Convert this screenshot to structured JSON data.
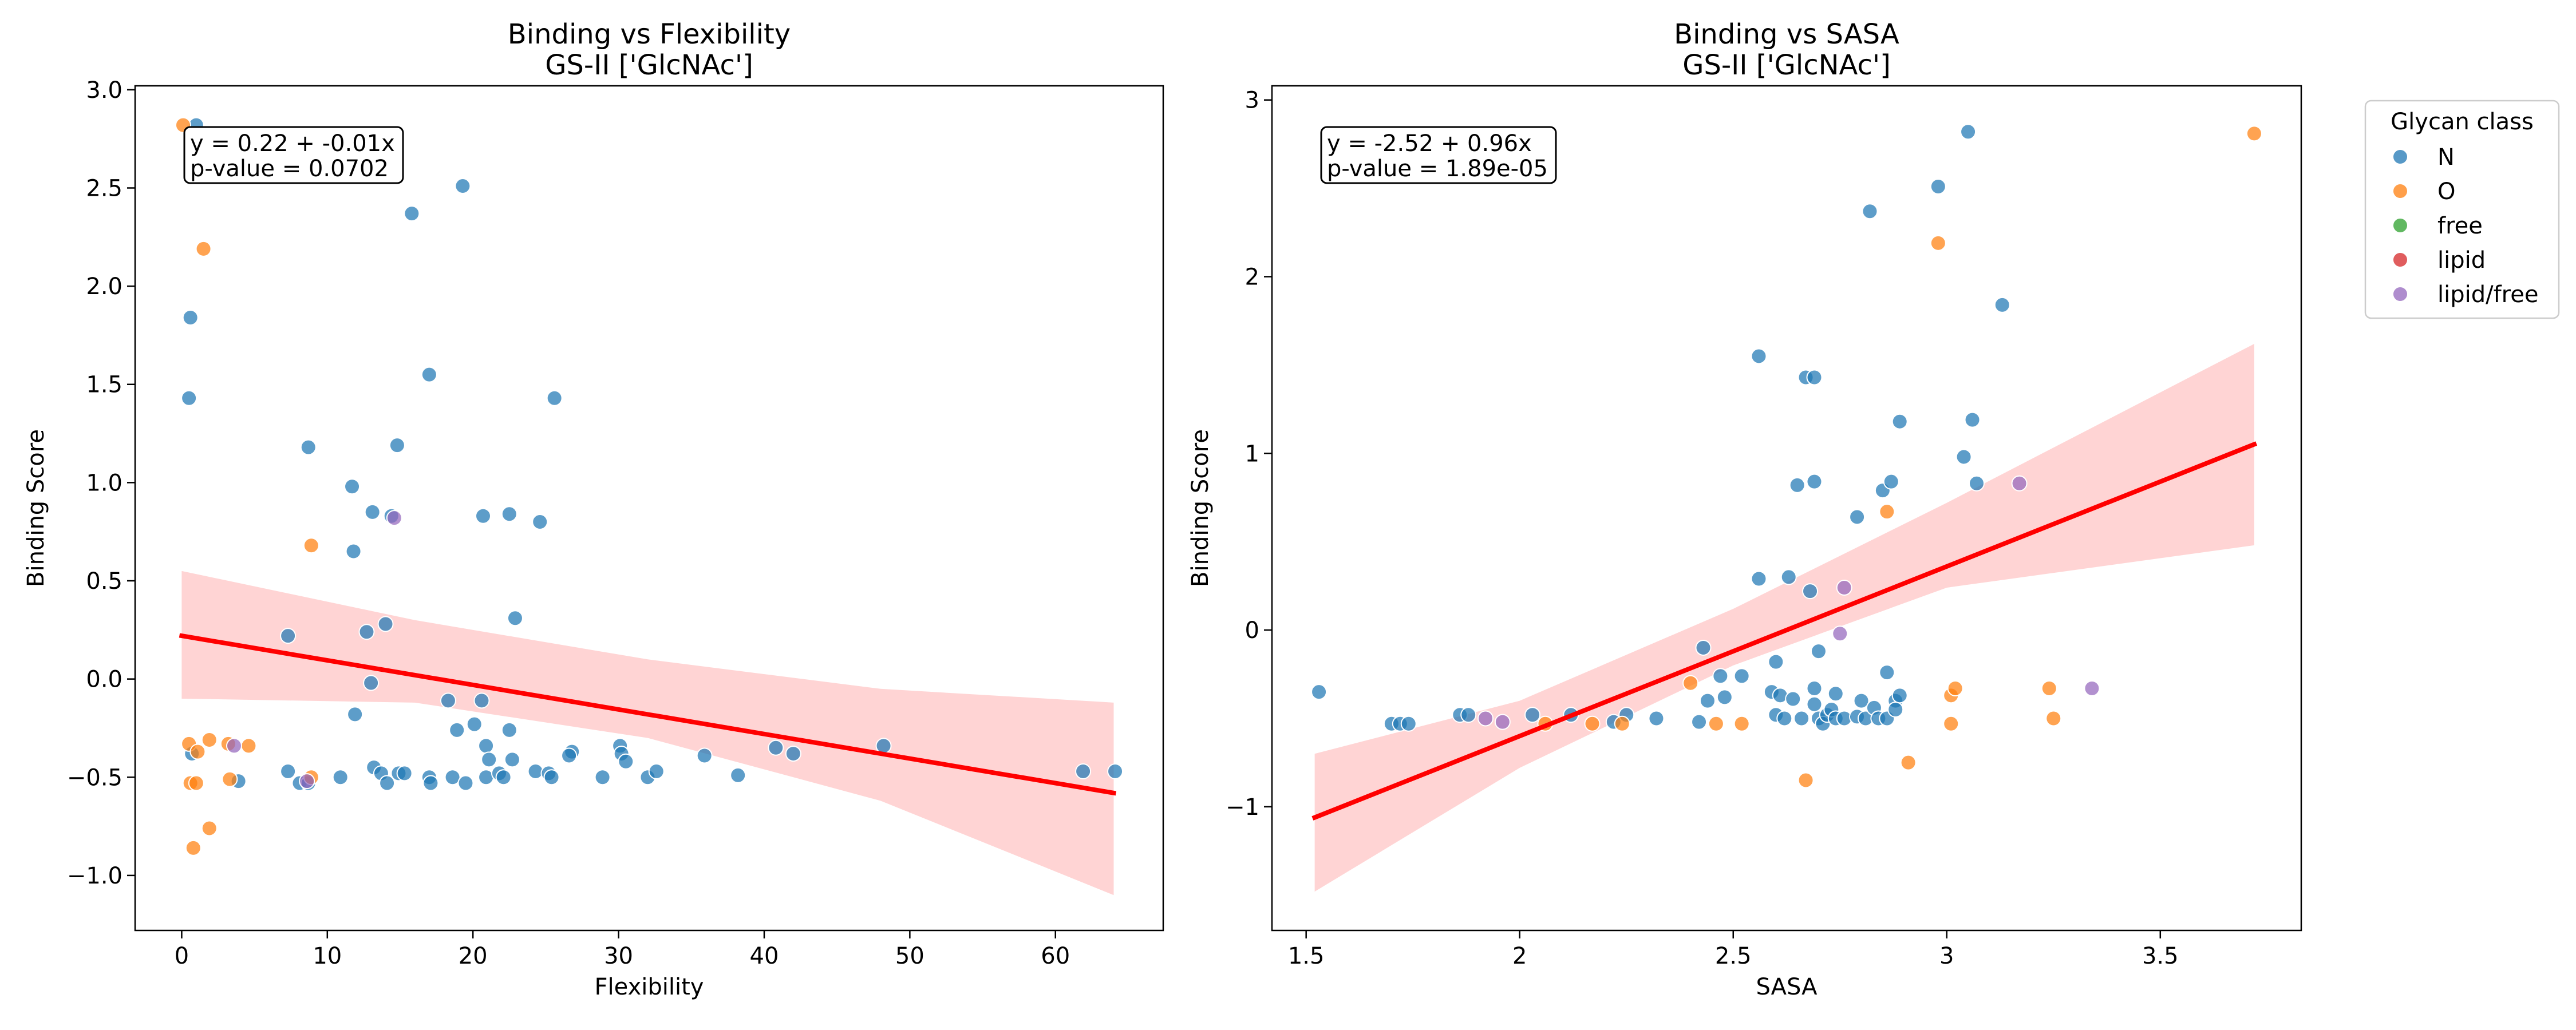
{
  "chart_data": [
    {
      "type": "scatter",
      "title": "Binding vs Flexibility",
      "subtitle": "GS-II ['GlcNAc']",
      "xlabel": "Flexibility",
      "ylabel": "Binding Score",
      "xlim": [
        -3.2,
        67.4
      ],
      "ylim": [
        -1.28,
        3.02
      ],
      "xticks": [
        0,
        10,
        20,
        30,
        40,
        50,
        60
      ],
      "yticks": [
        -1.0,
        -0.5,
        0.0,
        0.5,
        1.0,
        1.5,
        2.0,
        2.5,
        3.0
      ],
      "ytick_labels": [
        "−1.0",
        "−0.5",
        "0.0",
        "0.5",
        "1.0",
        "1.5",
        "2.0",
        "2.5",
        "3.0"
      ],
      "grid": false,
      "stats_text": [
        "y = 0.22 + -0.01x",
        "p-value = 0.0702"
      ],
      "fit": {
        "intercept": 0.22,
        "slope": -0.0125,
        "x_range": [
          0,
          64
        ]
      },
      "ci_band": {
        "x": [
          0,
          16,
          32,
          48,
          64
        ],
        "lower": [
          -0.1,
          -0.12,
          -0.3,
          -0.62,
          -1.1
        ],
        "upper": [
          0.55,
          0.3,
          0.1,
          -0.05,
          -0.12
        ]
      },
      "series": [
        {
          "name": "N",
          "color": "#1f77b4",
          "points": [
            [
              1.0,
              2.82
            ],
            [
              0.6,
              1.84
            ],
            [
              0.5,
              1.43
            ],
            [
              19.3,
              2.51
            ],
            [
              15.8,
              2.37
            ],
            [
              17.0,
              1.55
            ],
            [
              25.6,
              1.43
            ],
            [
              8.7,
              1.18
            ],
            [
              14.8,
              1.19
            ],
            [
              11.7,
              0.98
            ],
            [
              13.1,
              0.85
            ],
            [
              14.4,
              0.83
            ],
            [
              20.7,
              0.83
            ],
            [
              22.5,
              0.84
            ],
            [
              24.6,
              0.8
            ],
            [
              11.8,
              0.65
            ],
            [
              22.9,
              0.31
            ],
            [
              14.0,
              0.28
            ],
            [
              12.7,
              0.24
            ],
            [
              7.3,
              0.22
            ],
            [
              13.0,
              -0.02
            ],
            [
              18.3,
              -0.11
            ],
            [
              20.6,
              -0.11
            ],
            [
              11.9,
              -0.18
            ],
            [
              20.1,
              -0.23
            ],
            [
              18.9,
              -0.26
            ],
            [
              22.5,
              -0.26
            ],
            [
              20.9,
              -0.34
            ],
            [
              22.7,
              -0.41
            ],
            [
              21.1,
              -0.41
            ],
            [
              26.8,
              -0.37
            ],
            [
              26.6,
              -0.39
            ],
            [
              30.1,
              -0.34
            ],
            [
              30.2,
              -0.38
            ],
            [
              30.5,
              -0.42
            ],
            [
              35.9,
              -0.39
            ],
            [
              40.8,
              -0.35
            ],
            [
              42.0,
              -0.38
            ],
            [
              48.2,
              -0.34
            ],
            [
              0.7,
              -0.38
            ],
            [
              3.9,
              -0.52
            ],
            [
              7.3,
              -0.47
            ],
            [
              8.1,
              -0.53
            ],
            [
              8.7,
              -0.53
            ],
            [
              10.9,
              -0.5
            ],
            [
              13.2,
              -0.45
            ],
            [
              13.7,
              -0.48
            ],
            [
              14.1,
              -0.53
            ],
            [
              14.9,
              -0.48
            ],
            [
              15.3,
              -0.48
            ],
            [
              17.0,
              -0.5
            ],
            [
              17.1,
              -0.53
            ],
            [
              18.6,
              -0.5
            ],
            [
              19.5,
              -0.53
            ],
            [
              20.9,
              -0.5
            ],
            [
              21.8,
              -0.48
            ],
            [
              22.1,
              -0.5
            ],
            [
              24.3,
              -0.47
            ],
            [
              25.2,
              -0.48
            ],
            [
              25.4,
              -0.5
            ],
            [
              28.9,
              -0.5
            ],
            [
              32.0,
              -0.5
            ],
            [
              32.6,
              -0.47
            ],
            [
              38.2,
              -0.49
            ],
            [
              61.9,
              -0.47
            ],
            [
              64.1,
              -0.47
            ]
          ]
        },
        {
          "name": "O",
          "color": "#ff7f0e",
          "points": [
            [
              0.1,
              2.82
            ],
            [
              1.5,
              2.19
            ],
            [
              8.9,
              0.68
            ],
            [
              0.5,
              -0.33
            ],
            [
              1.1,
              -0.37
            ],
            [
              1.9,
              -0.31
            ],
            [
              3.2,
              -0.33
            ],
            [
              4.6,
              -0.34
            ],
            [
              0.6,
              -0.53
            ],
            [
              1.0,
              -0.53
            ],
            [
              3.3,
              -0.51
            ],
            [
              8.9,
              -0.5
            ],
            [
              1.9,
              -0.76
            ],
            [
              0.8,
              -0.86
            ]
          ]
        },
        {
          "name": "free",
          "color": "#2ca02c",
          "points": []
        },
        {
          "name": "lipid",
          "color": "#d62728",
          "points": []
        },
        {
          "name": "lipid/free",
          "color": "#9467bd",
          "points": [
            [
              3.6,
              -0.34
            ],
            [
              8.6,
              -0.52
            ],
            [
              14.6,
              0.82
            ]
          ]
        }
      ]
    },
    {
      "type": "scatter",
      "title": "Binding vs SASA",
      "subtitle": "GS-II ['GlcNAc']",
      "xlabel": "SASA",
      "ylabel": "Binding Score",
      "xlim": [
        1.42,
        3.83
      ],
      "ylim": [
        -1.7,
        3.08
      ],
      "xticks": [
        1.5,
        2.0,
        2.5,
        3.0,
        3.5
      ],
      "yticks": [
        -1,
        0,
        1,
        2,
        3
      ],
      "ytick_labels": [
        "−1",
        "0",
        "1",
        "2",
        "3"
      ],
      "grid": false,
      "stats_text": [
        "y = -2.52 + 0.96x",
        "p-value = 1.89e-05"
      ],
      "fit": {
        "intercept": -2.52,
        "slope": 0.96,
        "x_range": [
          1.52,
          3.72
        ]
      },
      "ci_band": {
        "x": [
          1.52,
          2.0,
          2.5,
          3.0,
          3.72
        ],
        "lower": [
          -1.48,
          -0.78,
          -0.2,
          0.24,
          0.48
        ],
        "upper": [
          -0.7,
          -0.4,
          0.12,
          0.72,
          1.62
        ]
      },
      "series": [
        {
          "name": "N",
          "color": "#1f77b4",
          "points": [
            [
              1.53,
              -0.35
            ],
            [
              1.7,
              -0.53
            ],
            [
              1.72,
              -0.53
            ],
            [
              1.74,
              -0.53
            ],
            [
              1.86,
              -0.48
            ],
            [
              1.88,
              -0.48
            ],
            [
              2.03,
              -0.48
            ],
            [
              2.12,
              -0.48
            ],
            [
              2.22,
              -0.52
            ],
            [
              2.25,
              -0.48
            ],
            [
              2.32,
              -0.5
            ],
            [
              2.42,
              -0.52
            ],
            [
              2.43,
              -0.1
            ],
            [
              2.44,
              -0.4
            ],
            [
              2.47,
              -0.26
            ],
            [
              2.48,
              -0.38
            ],
            [
              2.52,
              -0.26
            ],
            [
              2.56,
              1.55
            ],
            [
              2.56,
              0.29
            ],
            [
              2.59,
              -0.35
            ],
            [
              2.6,
              -0.18
            ],
            [
              2.61,
              -0.37
            ],
            [
              2.6,
              -0.48
            ],
            [
              2.62,
              -0.5
            ],
            [
              2.63,
              0.3
            ],
            [
              2.64,
              -0.39
            ],
            [
              2.65,
              0.82
            ],
            [
              2.66,
              -0.5
            ],
            [
              2.67,
              1.43
            ],
            [
              2.68,
              0.22
            ],
            [
              2.69,
              1.43
            ],
            [
              2.69,
              -0.33
            ],
            [
              2.69,
              -0.42
            ],
            [
              2.69,
              0.84
            ],
            [
              2.7,
              -0.5
            ],
            [
              2.7,
              -0.12
            ],
            [
              2.71,
              -0.53
            ],
            [
              2.72,
              -0.48
            ],
            [
              2.73,
              -0.45
            ],
            [
              2.74,
              -0.36
            ],
            [
              2.74,
              -0.5
            ],
            [
              2.76,
              -0.5
            ],
            [
              2.79,
              0.64
            ],
            [
              2.79,
              -0.49
            ],
            [
              2.8,
              -0.4
            ],
            [
              2.81,
              -0.5
            ],
            [
              2.82,
              2.37
            ],
            [
              2.83,
              -0.44
            ],
            [
              2.84,
              -0.5
            ],
            [
              2.85,
              0.79
            ],
            [
              2.86,
              -0.5
            ],
            [
              2.86,
              -0.24
            ],
            [
              2.87,
              0.84
            ],
            [
              2.88,
              -0.4
            ],
            [
              2.88,
              -0.45
            ],
            [
              2.89,
              -0.37
            ],
            [
              2.89,
              1.18
            ],
            [
              2.98,
              2.51
            ],
            [
              3.04,
              0.98
            ],
            [
              3.05,
              2.82
            ],
            [
              3.06,
              1.19
            ],
            [
              3.07,
              0.83
            ],
            [
              3.13,
              1.84
            ]
          ]
        },
        {
          "name": "O",
          "color": "#ff7f0e",
          "points": [
            [
              2.06,
              -0.53
            ],
            [
              2.17,
              -0.53
            ],
            [
              2.24,
              -0.53
            ],
            [
              2.4,
              -0.3
            ],
            [
              2.46,
              -0.53
            ],
            [
              2.52,
              -0.53
            ],
            [
              2.67,
              -0.85
            ],
            [
              2.86,
              0.67
            ],
            [
              2.91,
              -0.75
            ],
            [
              2.98,
              2.19
            ],
            [
              3.01,
              -0.37
            ],
            [
              3.02,
              -0.33
            ],
            [
              3.01,
              -0.53
            ],
            [
              3.24,
              -0.33
            ],
            [
              3.25,
              -0.5
            ],
            [
              3.72,
              2.81
            ]
          ]
        },
        {
          "name": "free",
          "color": "#2ca02c",
          "points": []
        },
        {
          "name": "lipid",
          "color": "#d62728",
          "points": []
        },
        {
          "name": "lipid/free",
          "color": "#9467bd",
          "points": [
            [
              1.92,
              -0.5
            ],
            [
              1.96,
              -0.52
            ],
            [
              2.76,
              0.24
            ],
            [
              2.75,
              -0.02
            ],
            [
              3.17,
              0.83
            ],
            [
              3.34,
              -0.33
            ]
          ]
        }
      ]
    }
  ],
  "legend": {
    "title": "Glycan class",
    "items": [
      {
        "label": "N",
        "color": "#1f77b4"
      },
      {
        "label": "O",
        "color": "#ff7f0e"
      },
      {
        "label": "free",
        "color": "#2ca02c"
      },
      {
        "label": "lipid",
        "color": "#d62728"
      },
      {
        "label": "lipid/free",
        "color": "#9467bd"
      }
    ]
  }
}
